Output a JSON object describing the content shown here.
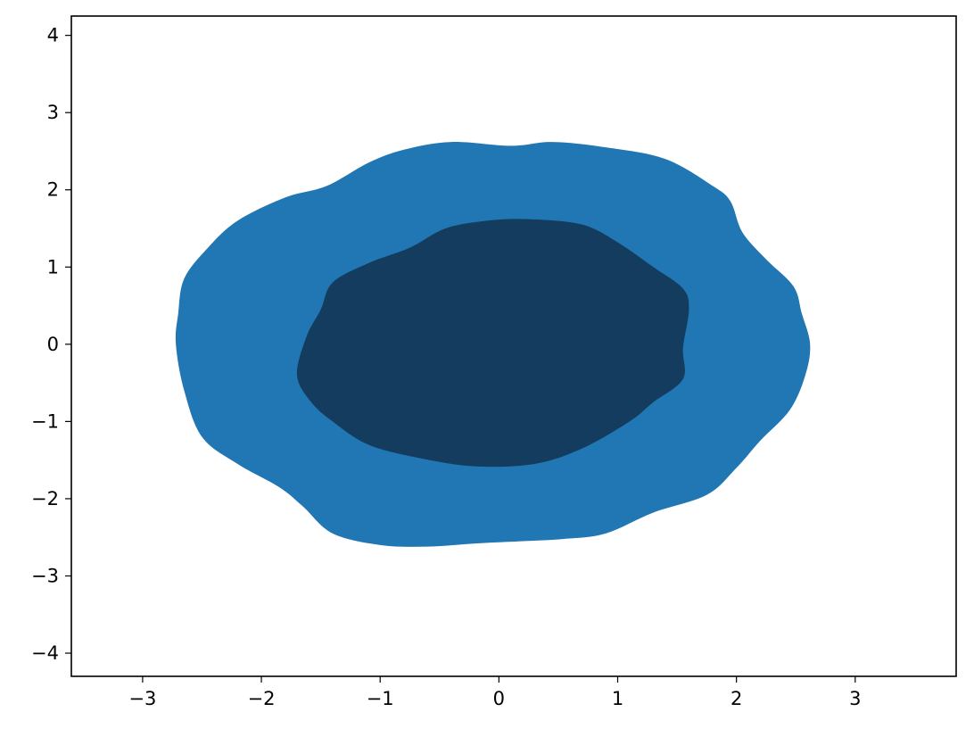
{
  "chart_data": {
    "type": "contourf",
    "title": "",
    "xlabel": "",
    "ylabel": "",
    "xlim": [
      -3.6,
      3.85
    ],
    "ylim": [
      -4.3,
      4.25
    ],
    "grid": false,
    "x_ticks": [
      -3,
      -2,
      -1,
      0,
      1,
      2,
      3
    ],
    "x_tick_labels": [
      "−3",
      "−2",
      "−1",
      "0",
      "1",
      "2",
      "3"
    ],
    "y_ticks": [
      -4,
      -3,
      -2,
      -1,
      0,
      1,
      2,
      3,
      4
    ],
    "y_tick_labels": [
      "−4",
      "−3",
      "−2",
      "−1",
      "0",
      "1",
      "2",
      "3",
      "4"
    ],
    "levels": [
      {
        "level": "outer",
        "color": "#2177b3",
        "boundary": [
          [
            2.62,
            0.0
          ],
          [
            2.55,
            0.4
          ],
          [
            2.48,
            0.75
          ],
          [
            2.25,
            1.1
          ],
          [
            2.05,
            1.45
          ],
          [
            1.95,
            1.85
          ],
          [
            1.8,
            2.05
          ],
          [
            1.4,
            2.4
          ],
          [
            0.9,
            2.55
          ],
          [
            0.45,
            2.62
          ],
          [
            0.1,
            2.57
          ],
          [
            -0.4,
            2.62
          ],
          [
            -0.8,
            2.52
          ],
          [
            -1.1,
            2.35
          ],
          [
            -1.45,
            2.05
          ],
          [
            -1.8,
            1.9
          ],
          [
            -2.2,
            1.6
          ],
          [
            -2.45,
            1.25
          ],
          [
            -2.65,
            0.85
          ],
          [
            -2.7,
            0.4
          ],
          [
            -2.72,
            0.0
          ],
          [
            -2.65,
            -0.6
          ],
          [
            -2.5,
            -1.2
          ],
          [
            -2.2,
            -1.55
          ],
          [
            -1.85,
            -1.85
          ],
          [
            -1.65,
            -2.1
          ],
          [
            -1.4,
            -2.45
          ],
          [
            -1.0,
            -2.6
          ],
          [
            -0.6,
            -2.62
          ],
          [
            -0.2,
            -2.58
          ],
          [
            0.2,
            -2.55
          ],
          [
            0.55,
            -2.52
          ],
          [
            0.9,
            -2.45
          ],
          [
            1.3,
            -2.18
          ],
          [
            1.75,
            -1.95
          ],
          [
            2.0,
            -1.6
          ],
          [
            2.2,
            -1.25
          ],
          [
            2.45,
            -0.85
          ],
          [
            2.58,
            -0.4
          ]
        ]
      },
      {
        "level": "inner",
        "color": "#133c5e",
        "boundary": [
          [
            1.6,
            0.45
          ],
          [
            1.55,
            -0.05
          ],
          [
            1.55,
            -0.45
          ],
          [
            1.3,
            -0.75
          ],
          [
            1.1,
            -1.0
          ],
          [
            0.7,
            -1.35
          ],
          [
            0.3,
            -1.55
          ],
          [
            -0.2,
            -1.58
          ],
          [
            -0.65,
            -1.48
          ],
          [
            -1.1,
            -1.3
          ],
          [
            -1.4,
            -1.0
          ],
          [
            -1.58,
            -0.75
          ],
          [
            -1.7,
            -0.4
          ],
          [
            -1.62,
            0.1
          ],
          [
            -1.5,
            0.45
          ],
          [
            -1.4,
            0.8
          ],
          [
            -1.1,
            1.05
          ],
          [
            -0.75,
            1.25
          ],
          [
            -0.45,
            1.5
          ],
          [
            -0.1,
            1.6
          ],
          [
            0.25,
            1.62
          ],
          [
            0.7,
            1.55
          ],
          [
            1.0,
            1.32
          ],
          [
            1.3,
            1.0
          ],
          [
            1.55,
            0.72
          ]
        ]
      }
    ]
  }
}
